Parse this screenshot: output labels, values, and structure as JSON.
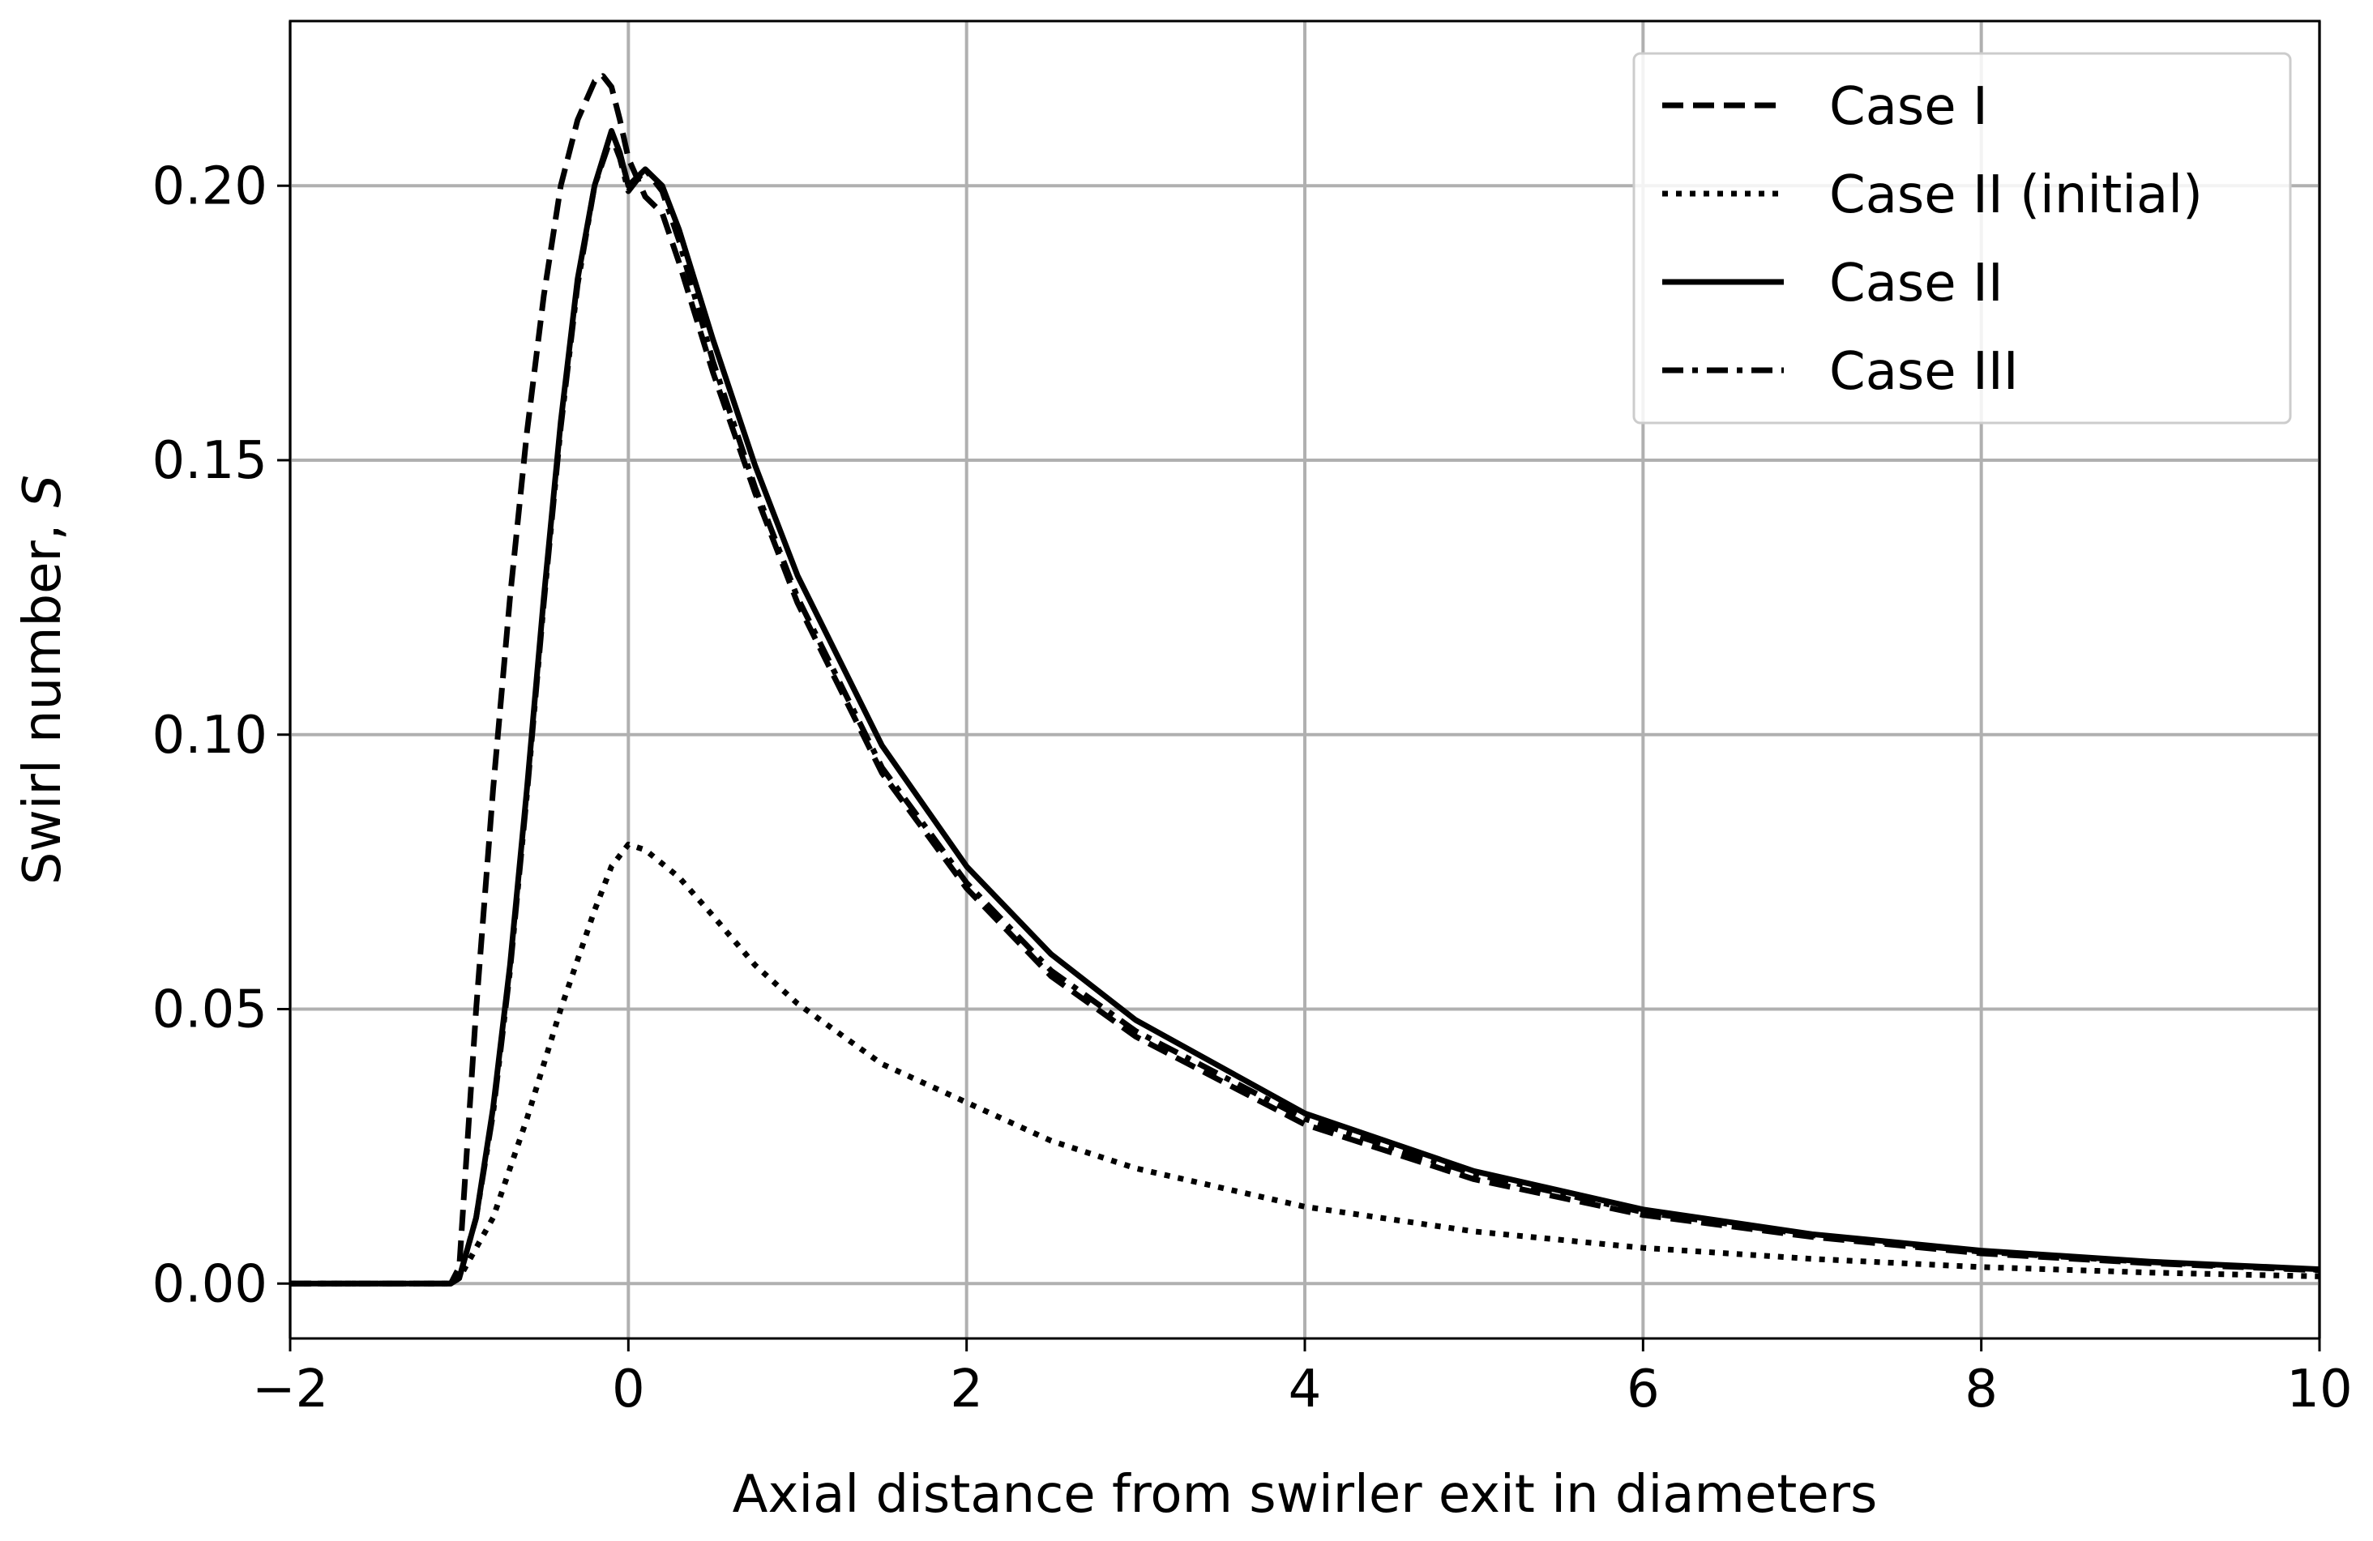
{
  "chart_data": {
    "type": "line",
    "xlabel": "Axial distance from swirler exit in diameters",
    "ylabel_prefix": "Swirl number, ",
    "ylabel_symbol": "S",
    "xlim": [
      -2,
      10
    ],
    "ylim": [
      -0.01,
      0.23
    ],
    "grid": true,
    "legend_position": "top-right",
    "x_ticks": [
      -2,
      0,
      2,
      4,
      6,
      8,
      10
    ],
    "x_tick_labels": [
      "−2",
      "0",
      "2",
      "4",
      "6",
      "8",
      "10"
    ],
    "y_ticks": [
      0.0,
      0.05,
      0.1,
      0.15,
      0.2
    ],
    "y_tick_labels": [
      "0.00",
      "0.05",
      "0.10",
      "0.15",
      "0.20"
    ],
    "series": [
      {
        "name": "Case I",
        "style": "dashed",
        "color": "#000000",
        "points": [
          [
            -2,
            0
          ],
          [
            -1.05,
            0
          ],
          [
            -1,
            0.003
          ],
          [
            -0.9,
            0.05
          ],
          [
            -0.8,
            0.09
          ],
          [
            -0.7,
            0.125
          ],
          [
            -0.6,
            0.155
          ],
          [
            -0.5,
            0.18
          ],
          [
            -0.4,
            0.2
          ],
          [
            -0.3,
            0.212
          ],
          [
            -0.2,
            0.219
          ],
          [
            -0.15,
            0.22
          ],
          [
            -0.1,
            0.218
          ],
          [
            -0.05,
            0.212
          ],
          [
            0,
            0.205
          ],
          [
            0.1,
            0.198
          ],
          [
            0.2,
            0.195
          ],
          [
            0.3,
            0.186
          ],
          [
            0.5,
            0.166
          ],
          [
            0.75,
            0.144
          ],
          [
            1,
            0.124
          ],
          [
            1.5,
            0.093
          ],
          [
            2,
            0.072
          ],
          [
            2.5,
            0.056
          ],
          [
            3,
            0.045
          ],
          [
            4,
            0.029
          ],
          [
            5,
            0.019
          ],
          [
            6,
            0.0125
          ],
          [
            7,
            0.0085
          ],
          [
            8,
            0.0055
          ],
          [
            9,
            0.0037
          ],
          [
            10,
            0.0024
          ]
        ]
      },
      {
        "name": "Case II (initial)",
        "style": "dotted",
        "color": "#000000",
        "points": [
          [
            -2,
            0
          ],
          [
            -1.05,
            0
          ],
          [
            -1,
            0.001
          ],
          [
            -0.8,
            0.012
          ],
          [
            -0.6,
            0.03
          ],
          [
            -0.4,
            0.05
          ],
          [
            -0.2,
            0.068
          ],
          [
            -0.1,
            0.076
          ],
          [
            0,
            0.08
          ],
          [
            0.1,
            0.079
          ],
          [
            0.3,
            0.074
          ],
          [
            0.5,
            0.067
          ],
          [
            0.75,
            0.058
          ],
          [
            1,
            0.051
          ],
          [
            1.5,
            0.04
          ],
          [
            2,
            0.033
          ],
          [
            2.5,
            0.026
          ],
          [
            3,
            0.021
          ],
          [
            4,
            0.014
          ],
          [
            5,
            0.0095
          ],
          [
            6,
            0.0065
          ],
          [
            7,
            0.0045
          ],
          [
            8,
            0.003
          ],
          [
            9,
            0.002
          ],
          [
            10,
            0.0013
          ]
        ]
      },
      {
        "name": "Case II",
        "style": "solid",
        "color": "#000000",
        "points": [
          [
            -2,
            0
          ],
          [
            -1.05,
            0
          ],
          [
            -1,
            0.001
          ],
          [
            -0.9,
            0.012
          ],
          [
            -0.8,
            0.032
          ],
          [
            -0.7,
            0.058
          ],
          [
            -0.6,
            0.09
          ],
          [
            -0.5,
            0.125
          ],
          [
            -0.4,
            0.157
          ],
          [
            -0.3,
            0.183
          ],
          [
            -0.2,
            0.2
          ],
          [
            -0.1,
            0.21
          ],
          [
            -0.05,
            0.206
          ],
          [
            0,
            0.2
          ],
          [
            0.1,
            0.203
          ],
          [
            0.2,
            0.2
          ],
          [
            0.3,
            0.192
          ],
          [
            0.5,
            0.172
          ],
          [
            0.75,
            0.149
          ],
          [
            1,
            0.129
          ],
          [
            1.5,
            0.098
          ],
          [
            2,
            0.076
          ],
          [
            2.5,
            0.06
          ],
          [
            3,
            0.048
          ],
          [
            4,
            0.031
          ],
          [
            5,
            0.0205
          ],
          [
            6,
            0.0135
          ],
          [
            7,
            0.009
          ],
          [
            8,
            0.006
          ],
          [
            9,
            0.004
          ],
          [
            10,
            0.0026
          ]
        ]
      },
      {
        "name": "Case III",
        "style": "dashdot",
        "color": "#000000",
        "points": [
          [
            -2,
            0
          ],
          [
            -1.05,
            0
          ],
          [
            -1,
            0.001
          ],
          [
            -0.9,
            0.012
          ],
          [
            -0.8,
            0.031
          ],
          [
            -0.7,
            0.057
          ],
          [
            -0.6,
            0.089
          ],
          [
            -0.5,
            0.124
          ],
          [
            -0.4,
            0.156
          ],
          [
            -0.3,
            0.182
          ],
          [
            -0.2,
            0.2
          ],
          [
            -0.1,
            0.209
          ],
          [
            -0.05,
            0.205
          ],
          [
            0,
            0.199
          ],
          [
            0.1,
            0.203
          ],
          [
            0.2,
            0.199
          ],
          [
            0.3,
            0.19
          ],
          [
            0.5,
            0.168
          ],
          [
            0.75,
            0.145
          ],
          [
            1,
            0.125
          ],
          [
            1.5,
            0.094
          ],
          [
            2,
            0.073
          ],
          [
            2.5,
            0.057
          ],
          [
            3,
            0.046
          ],
          [
            4,
            0.03
          ],
          [
            5,
            0.02
          ],
          [
            6,
            0.013
          ],
          [
            7,
            0.0088
          ],
          [
            8,
            0.0058
          ],
          [
            9,
            0.0039
          ],
          [
            10,
            0.0025
          ]
        ]
      }
    ]
  }
}
